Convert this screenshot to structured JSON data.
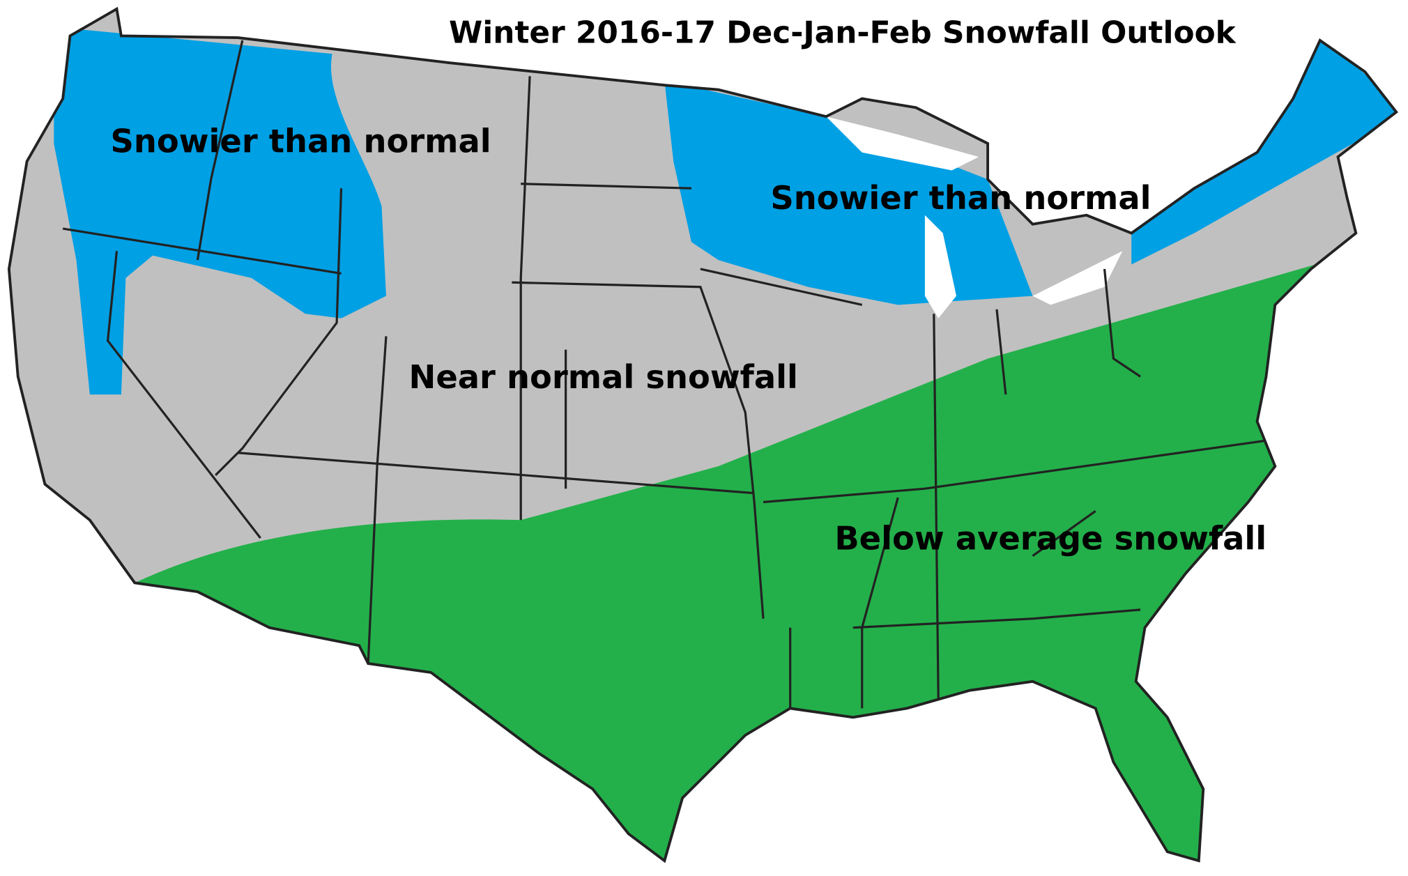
{
  "title": "Winter 2016-17 Dec-Jan-Feb Snowfall Outlook",
  "regions": [
    {
      "label": "Snowier than normal"
    },
    {
      "label": "Snowier than normal"
    },
    {
      "label": "Near normal snowfall"
    },
    {
      "label": "Below average snowfall"
    }
  ]
}
